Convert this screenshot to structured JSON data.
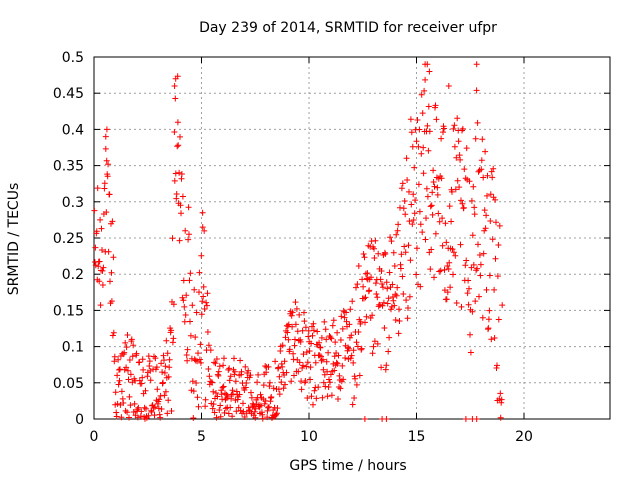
{
  "chart_data": {
    "type": "scatter",
    "title": "Day 239 of 2014, SRMTID for receiver ufpr",
    "xlabel": "GPS time / hours",
    "ylabel": "SRMTID / TECUs",
    "xlim": [
      0,
      24
    ],
    "ylim": [
      0,
      0.5
    ],
    "xticks": [
      0,
      5,
      10,
      15,
      20
    ],
    "xtick_labels": [
      "0",
      "5",
      "10",
      "15",
      "20"
    ],
    "yticks": [
      0,
      0.05,
      0.1,
      0.15,
      0.2,
      0.25,
      0.3,
      0.35,
      0.4,
      0.45,
      0.5
    ],
    "ytick_labels": [
      "0",
      "0.05",
      "0.1",
      "0.15",
      "0.2",
      "0.25",
      "0.3",
      "0.35",
      "0.4",
      "0.45",
      "0.5"
    ],
    "grid": true,
    "marker": "+",
    "series": [
      {
        "name": "SRMTID",
        "color": "#ff0000",
        "trend_points": {
          "x": [
            0.0,
            0.1,
            0.3,
            0.5,
            0.7,
            0.9,
            1.0,
            1.2,
            1.5,
            1.8,
            2.0,
            2.5,
            3.0,
            3.3,
            3.6,
            3.8,
            4.0,
            4.2,
            4.4,
            4.6,
            4.8,
            5.0,
            5.2,
            5.5,
            6.0,
            6.5,
            7.0,
            7.5,
            8.0,
            8.5,
            9.0,
            9.3,
            9.6,
            10.0,
            10.5,
            11.0,
            11.5,
            12.0,
            12.5,
            13.0,
            13.5,
            14.0,
            14.5,
            15.0,
            15.3,
            15.6,
            16.0,
            16.5,
            17.0,
            17.5,
            17.8,
            18.0,
            18.3,
            18.6,
            18.9,
            19.0
          ],
          "y": [
            0.2,
            0.24,
            0.22,
            0.3,
            0.26,
            0.18,
            0.02,
            0.04,
            0.06,
            0.05,
            0.03,
            0.04,
            0.02,
            0.05,
            0.08,
            0.4,
            0.3,
            0.22,
            0.18,
            0.12,
            0.1,
            0.2,
            0.12,
            0.04,
            0.04,
            0.04,
            0.04,
            0.02,
            0.03,
            0.04,
            0.1,
            0.12,
            0.1,
            0.07,
            0.08,
            0.08,
            0.09,
            0.1,
            0.14,
            0.16,
            0.15,
            0.18,
            0.26,
            0.3,
            0.32,
            0.35,
            0.3,
            0.27,
            0.28,
            0.22,
            0.32,
            0.28,
            0.26,
            0.2,
            0.12,
            0.04
          ]
        },
        "zero_points_x": [
          12.6,
          13.4,
          13.6,
          17.3,
          17.6,
          17.8
        ]
      }
    ]
  }
}
